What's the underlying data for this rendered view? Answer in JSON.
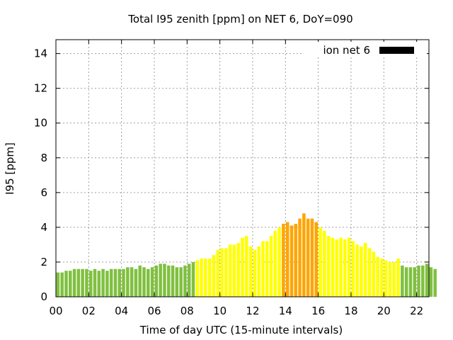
{
  "chart_data": {
    "type": "bar",
    "title": "Total I95 zenith [ppm] on NET 6, DoY=090",
    "xlabel": "Time of day UTC (15-minute intervals)",
    "ylabel": "I95 [ppm]",
    "xlim": [
      0,
      22.75
    ],
    "ylim": [
      0,
      14.8
    ],
    "xticks": [
      "00",
      "02",
      "04",
      "06",
      "08",
      "10",
      "12",
      "14",
      "16",
      "18",
      "20",
      "22"
    ],
    "xtick_values": [
      0,
      2,
      4,
      6,
      8,
      10,
      12,
      14,
      16,
      18,
      20,
      22
    ],
    "yticks": [
      "0",
      "2",
      "4",
      "6",
      "8",
      "10",
      "12",
      "14"
    ],
    "ytick_values": [
      0,
      2,
      4,
      6,
      8,
      10,
      12,
      14
    ],
    "grid": true,
    "legend": {
      "placement": "top-right",
      "label": "ion net 6",
      "color": "#000000"
    },
    "interval_hours": 0.25,
    "colors": {
      "low": "#80c040",
      "moderate": "#ffff00",
      "high": "#ffa500"
    },
    "series": [
      {
        "values": [
          1.4,
          1.4,
          1.5,
          1.5,
          1.6,
          1.6,
          1.6,
          1.6,
          1.5,
          1.6,
          1.5,
          1.6,
          1.5,
          1.6,
          1.6,
          1.6,
          1.6,
          1.7,
          1.7,
          1.6,
          1.8,
          1.7,
          1.6,
          1.7,
          1.8,
          1.9,
          1.9,
          1.8,
          1.8,
          1.7,
          1.7,
          1.8,
          1.9,
          2.0,
          2.1,
          2.2,
          2.2,
          2.2,
          2.4,
          2.7,
          2.8,
          2.8,
          3.0,
          3.0,
          3.1,
          3.4,
          3.5,
          2.9,
          2.7,
          2.9,
          3.2,
          3.2,
          3.5,
          3.8,
          4.0,
          4.2,
          4.3,
          4.1,
          4.2,
          4.5,
          4.8,
          4.5,
          4.5,
          4.3,
          4.0,
          3.8,
          3.5,
          3.4,
          3.3,
          3.4,
          3.3,
          3.4,
          3.2,
          3.0,
          2.9,
          3.1,
          2.8,
          2.6,
          2.3,
          2.2,
          2.1,
          2.0,
          2.0,
          2.2,
          1.8,
          1.7,
          1.7,
          1.7,
          1.8,
          1.8,
          1.9,
          1.7,
          1.6
        ],
        "levels": [
          "low",
          "low",
          "low",
          "low",
          "low",
          "low",
          "low",
          "low",
          "low",
          "low",
          "low",
          "low",
          "low",
          "low",
          "low",
          "low",
          "low",
          "low",
          "low",
          "low",
          "low",
          "low",
          "low",
          "low",
          "low",
          "low",
          "low",
          "low",
          "low",
          "low",
          "low",
          "low",
          "low",
          "low",
          "moderate",
          "moderate",
          "moderate",
          "moderate",
          "moderate",
          "moderate",
          "moderate",
          "moderate",
          "moderate",
          "moderate",
          "moderate",
          "moderate",
          "moderate",
          "moderate",
          "moderate",
          "moderate",
          "moderate",
          "moderate",
          "moderate",
          "moderate",
          "moderate",
          "high",
          "high",
          "high",
          "high",
          "high",
          "high",
          "high",
          "high",
          "high",
          "moderate",
          "moderate",
          "moderate",
          "moderate",
          "moderate",
          "moderate",
          "moderate",
          "moderate",
          "moderate",
          "moderate",
          "moderate",
          "moderate",
          "moderate",
          "moderate",
          "moderate",
          "moderate",
          "moderate",
          "moderate",
          "moderate",
          "moderate",
          "low",
          "low",
          "low",
          "low",
          "low",
          "low",
          "low",
          "low",
          "low"
        ]
      }
    ]
  }
}
